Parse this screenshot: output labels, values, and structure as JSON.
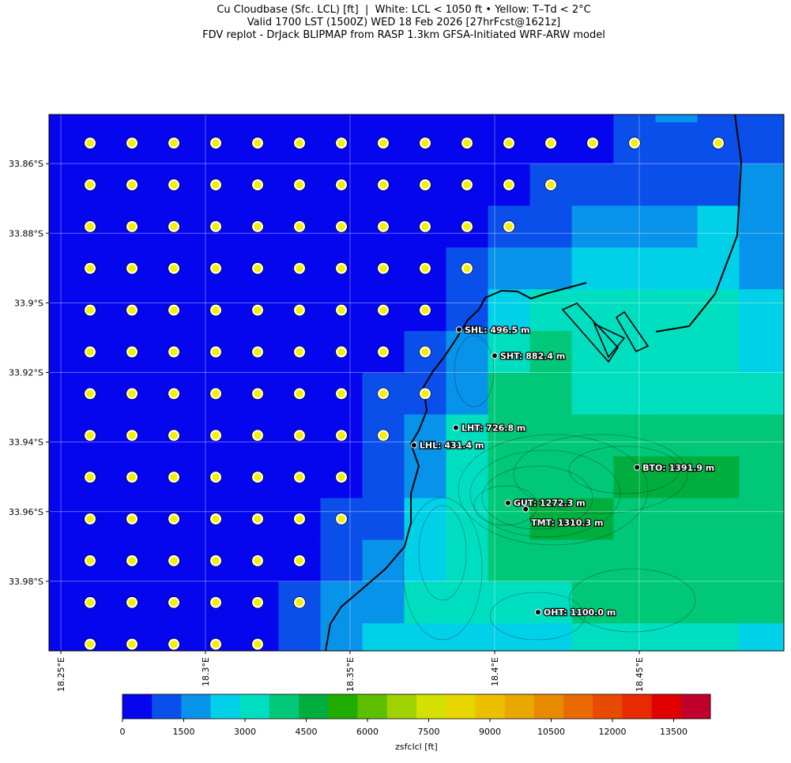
{
  "chart_data": {
    "type": "heatmap",
    "title": [
      "Cu Cloudbase (Sfc. LCL) [ft]  |  White: LCL < 1050 ft • Yellow: T–Td < 2°C",
      "Valid 1700 LST (1500Z) WED 18 Feb 2026 [27hrFcst@1621z]",
      "FDV replot - DrJack BLIPMAP from RASP 1.3km GFSA-Initiated WRF-ARW model"
    ],
    "xlim": [
      18.2459,
      18.5
    ],
    "ylim": [
      33.8459,
      34.0
    ],
    "xticks": [
      {
        "value": 18.25,
        "label": "18.25°E"
      },
      {
        "value": 18.3,
        "label": "18.3°E"
      },
      {
        "value": 18.35,
        "label": "18.35°E"
      },
      {
        "value": 18.4,
        "label": "18.4°E"
      },
      {
        "value": 18.45,
        "label": "18.45°E"
      }
    ],
    "yticks": [
      {
        "value": 33.86,
        "label": "33.86°S"
      },
      {
        "value": 33.88,
        "label": "33.88°S"
      },
      {
        "value": 33.9,
        "label": "33.9°S"
      },
      {
        "value": 33.92,
        "label": "33.92°S"
      },
      {
        "value": 33.94,
        "label": "33.94°S"
      },
      {
        "value": 33.96,
        "label": "33.96°S"
      },
      {
        "value": 33.98,
        "label": "33.98°S"
      }
    ],
    "grid": true,
    "grid_cells": {
      "lon0": 18.2384,
      "dlon": 0.01448,
      "lat0": 33.8361,
      "dlat": 0.012,
      "values": [
        [
          400,
          400,
          400,
          400,
          400,
          400,
          400,
          400,
          400,
          400,
          400,
          400,
          400,
          400,
          1000,
          1800,
          1000,
          1000,
          1000
        ],
        [
          400,
          400,
          400,
          400,
          400,
          400,
          400,
          400,
          400,
          400,
          400,
          400,
          400,
          400,
          1000,
          1000,
          1000,
          1000,
          1000
        ],
        [
          400,
          400,
          400,
          400,
          400,
          400,
          400,
          400,
          400,
          400,
          400,
          400,
          1000,
          1000,
          1000,
          1000,
          1000,
          1800,
          1800
        ],
        [
          400,
          400,
          400,
          400,
          400,
          400,
          400,
          400,
          400,
          400,
          400,
          1000,
          1000,
          1800,
          1800,
          1800,
          2500,
          1800,
          1800
        ],
        [
          400,
          400,
          400,
          400,
          400,
          400,
          400,
          400,
          400,
          400,
          1000,
          1800,
          1800,
          2500,
          2500,
          2500,
          2500,
          1800,
          1800
        ],
        [
          400,
          400,
          400,
          400,
          400,
          400,
          400,
          400,
          400,
          400,
          1000,
          2500,
          3200,
          3200,
          3200,
          3200,
          3200,
          2500,
          2500
        ],
        [
          400,
          400,
          400,
          400,
          400,
          400,
          400,
          400,
          400,
          1000,
          1800,
          3200,
          4000,
          3200,
          3200,
          3200,
          3200,
          2500,
          2500
        ],
        [
          400,
          400,
          400,
          400,
          400,
          400,
          400,
          400,
          1000,
          1000,
          1800,
          4000,
          4000,
          3200,
          3200,
          3200,
          3200,
          3200,
          3200
        ],
        [
          400,
          400,
          400,
          400,
          400,
          400,
          400,
          400,
          1000,
          1800,
          3200,
          4000,
          4000,
          4000,
          4000,
          4000,
          4000,
          4000,
          4000
        ],
        [
          400,
          400,
          400,
          400,
          400,
          400,
          400,
          400,
          1000,
          1800,
          3200,
          4000,
          4000,
          4000,
          4700,
          4700,
          4700,
          4000,
          4000
        ],
        [
          400,
          400,
          400,
          400,
          400,
          400,
          400,
          1000,
          1000,
          2500,
          3200,
          4000,
          4700,
          4700,
          4000,
          4000,
          4000,
          4000,
          4000
        ],
        [
          400,
          400,
          400,
          400,
          400,
          400,
          400,
          1000,
          1800,
          2500,
          3200,
          4000,
          4000,
          4000,
          4000,
          4000,
          4000,
          4000,
          4000
        ],
        [
          400,
          400,
          400,
          400,
          400,
          400,
          1000,
          1800,
          1800,
          3200,
          3200,
          3200,
          3200,
          4000,
          4000,
          4000,
          4000,
          4000,
          4000
        ],
        [
          400,
          400,
          400,
          400,
          400,
          400,
          1000,
          1800,
          2500,
          2500,
          2500,
          2500,
          2500,
          3200,
          3200,
          3200,
          3200,
          2500,
          2500
        ]
      ]
    },
    "yellow_flags": [
      [],
      [
        1,
        2,
        3,
        4,
        5,
        6,
        7,
        8,
        9,
        10,
        11,
        12,
        13,
        14,
        16
      ],
      [
        1,
        2,
        3,
        4,
        5,
        6,
        7,
        8,
        9,
        10,
        11,
        12
      ],
      [
        1,
        2,
        3,
        4,
        5,
        6,
        7,
        8,
        9,
        10,
        11
      ],
      [
        1,
        2,
        3,
        4,
        5,
        6,
        7,
        8,
        9,
        10
      ],
      [
        1,
        2,
        3,
        4,
        5,
        6,
        7,
        8,
        9
      ],
      [
        1,
        2,
        3,
        4,
        5,
        6,
        7,
        8,
        9
      ],
      [
        1,
        2,
        3,
        4,
        5,
        6,
        7,
        8,
        9
      ],
      [
        1,
        2,
        3,
        4,
        5,
        6,
        7,
        8
      ],
      [
        1,
        2,
        3,
        4,
        5,
        6,
        7
      ],
      [
        1,
        2,
        3,
        4,
        5,
        6,
        7
      ],
      [
        1,
        2,
        3,
        4,
        5,
        6
      ],
      [
        1,
        2,
        3,
        4,
        5,
        6
      ],
      [
        1,
        2,
        3,
        4,
        5
      ]
    ],
    "stations": [
      {
        "label": "SHL: 496.5 m",
        "lon": 18.3877,
        "lat": 33.9077
      },
      {
        "label": "SHT: 882.4 m",
        "lon": 18.4,
        "lat": 33.9152
      },
      {
        "label": "LHT: 726.8 m",
        "lon": 18.3866,
        "lat": 33.9359
      },
      {
        "label": "LHL: 431.4 m",
        "lon": 18.3721,
        "lat": 33.9409
      },
      {
        "label": "BTO: 1391.9 m",
        "lon": 18.4492,
        "lat": 33.9473
      },
      {
        "label": "GUT: 1272.3 m",
        "lon": 18.4046,
        "lat": 33.9575
      },
      {
        "label": "TMT: 1310.3 m",
        "lon": 18.4107,
        "lat": 33.9593
      },
      {
        "label": "OHT: 1100.0 m",
        "lon": 18.415,
        "lat": 33.9889
      }
    ],
    "colorbar": {
      "levels": [
        0,
        720,
        1440,
        2160,
        2880,
        3600,
        4320,
        5040,
        5760,
        6480,
        7200,
        7920,
        8640,
        9360,
        10080,
        10800,
        11520,
        12240,
        12960,
        13680,
        14400
      ],
      "colors": [
        "#0505ee",
        "#0a4fea",
        "#0893ea",
        "#00d0e8",
        "#00dec0",
        "#00c878",
        "#00ae3e",
        "#20ad00",
        "#5ebf00",
        "#9fd200",
        "#d3e000",
        "#e8d600",
        "#eac000",
        "#e8a800",
        "#e88a00",
        "#e86a00",
        "#e84a00",
        "#e82a00",
        "#e00000",
        "#c0002a"
      ],
      "ticks": [
        0,
        1500,
        3000,
        4500,
        6000,
        7500,
        9000,
        10500,
        12000,
        13500
      ],
      "label": "zsfclcl [ft]"
    }
  }
}
